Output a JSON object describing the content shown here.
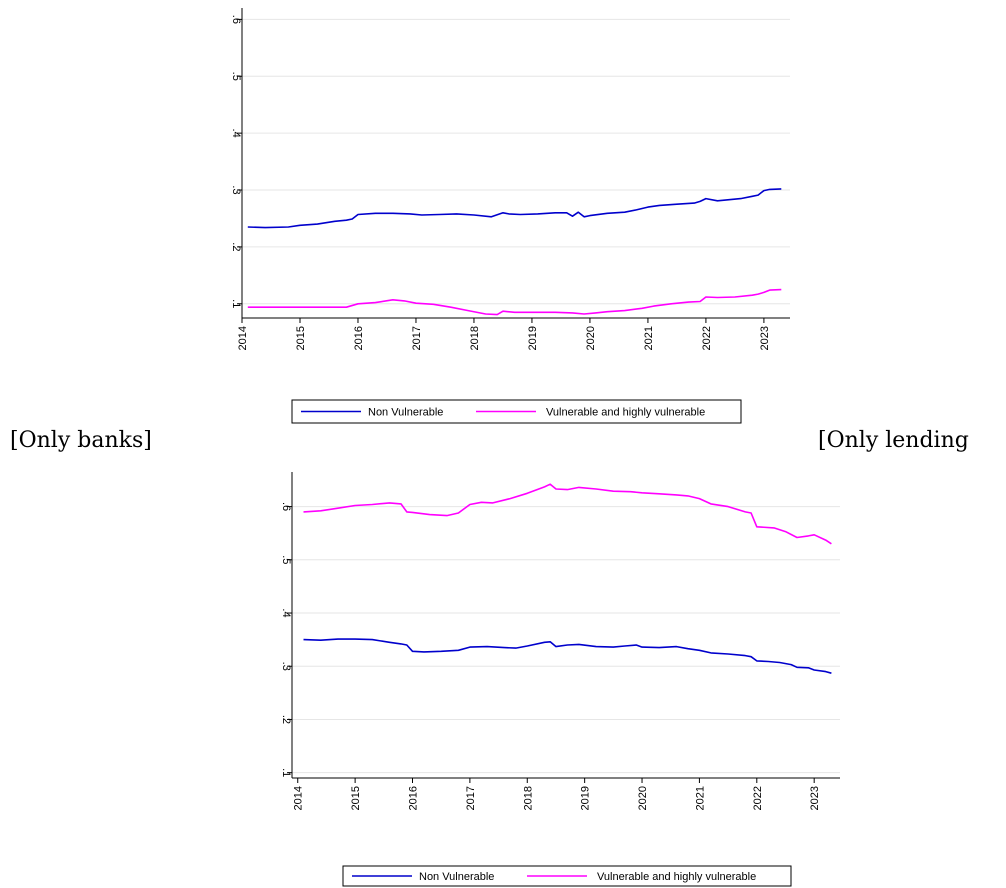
{
  "captions": {
    "left": "[Only banks]",
    "right": "[Only lending"
  },
  "colors": {
    "non_vulnerable": "#0000cc",
    "vulnerable": "#ff00ff",
    "grid": "#e6e6e6",
    "axis": "#000000"
  },
  "chart_data": [
    {
      "type": "line",
      "title": "",
      "xlabel": "",
      "ylabel": "",
      "xlim": [
        2014.0,
        2023.45
      ],
      "ylim": [
        0.075,
        0.62
      ],
      "x_ticks": [
        "2014",
        "2015",
        "2016",
        "2017",
        "2018",
        "2019",
        "2020",
        "2021",
        "2022",
        "2023"
      ],
      "y_ticks": [
        ".1",
        ".2",
        ".3",
        ".4",
        ".5",
        ".6"
      ],
      "grid": true,
      "legend_position": "bottom",
      "series": [
        {
          "name": "Non Vulnerable",
          "color": "#0000cc",
          "x": [
            2014.1,
            2014.4,
            2014.8,
            2015.0,
            2015.3,
            2015.6,
            2015.8,
            2015.9,
            2016.0,
            2016.3,
            2016.6,
            2016.9,
            2017.1,
            2017.4,
            2017.7,
            2018.0,
            2018.3,
            2018.5,
            2018.6,
            2018.8,
            2019.1,
            2019.4,
            2019.6,
            2019.7,
            2019.8,
            2019.9,
            2020.0,
            2020.3,
            2020.6,
            2020.8,
            2021.0,
            2021.2,
            2021.5,
            2021.8,
            2021.9,
            2022.0,
            2022.2,
            2022.4,
            2022.6,
            2022.8,
            2022.9,
            2023.0,
            2023.1,
            2023.3
          ],
          "y": [
            0.235,
            0.234,
            0.235,
            0.238,
            0.24,
            0.245,
            0.247,
            0.249,
            0.257,
            0.259,
            0.259,
            0.258,
            0.256,
            0.257,
            0.258,
            0.256,
            0.253,
            0.26,
            0.258,
            0.257,
            0.258,
            0.26,
            0.26,
            0.254,
            0.261,
            0.253,
            0.255,
            0.259,
            0.261,
            0.265,
            0.27,
            0.273,
            0.275,
            0.277,
            0.28,
            0.285,
            0.281,
            0.283,
            0.285,
            0.289,
            0.291,
            0.299,
            0.301,
            0.302
          ]
        },
        {
          "name": "Vulnerable and highly vulnerable",
          "color": "#ff00ff",
          "x": [
            2014.1,
            2014.5,
            2014.9,
            2015.2,
            2015.5,
            2015.8,
            2016.0,
            2016.3,
            2016.6,
            2016.8,
            2017.0,
            2017.3,
            2017.6,
            2017.9,
            2018.2,
            2018.4,
            2018.5,
            2018.7,
            2019.0,
            2019.4,
            2019.7,
            2019.9,
            2020.1,
            2020.3,
            2020.6,
            2020.9,
            2021.1,
            2021.4,
            2021.7,
            2021.9,
            2022.0,
            2022.2,
            2022.5,
            2022.8,
            2022.9,
            2023.0,
            2023.1,
            2023.3
          ],
          "y": [
            0.094,
            0.094,
            0.094,
            0.094,
            0.094,
            0.094,
            0.1,
            0.102,
            0.107,
            0.105,
            0.101,
            0.099,
            0.094,
            0.088,
            0.082,
            0.081,
            0.087,
            0.085,
            0.085,
            0.085,
            0.084,
            0.082,
            0.084,
            0.086,
            0.088,
            0.092,
            0.096,
            0.1,
            0.103,
            0.104,
            0.112,
            0.111,
            0.112,
            0.115,
            0.117,
            0.12,
            0.124,
            0.125
          ]
        }
      ],
      "legend": [
        "Non Vulnerable",
        "Vulnerable and highly vulnerable"
      ]
    },
    {
      "type": "line",
      "title": "",
      "xlabel": "",
      "ylabel": "",
      "xlim": [
        2013.9,
        2023.45
      ],
      "ylim": [
        0.09,
        0.665
      ],
      "x_ticks": [
        "2014",
        "2015",
        "2016",
        "2017",
        "2018",
        "2019",
        "2020",
        "2021",
        "2022",
        "2023"
      ],
      "y_ticks": [
        ".1",
        ".2",
        ".3",
        ".4",
        ".5",
        ".6"
      ],
      "grid": true,
      "legend_position": "bottom",
      "series": [
        {
          "name": "Non Vulnerable",
          "color": "#0000cc",
          "x": [
            2014.1,
            2014.4,
            2014.7,
            2015.0,
            2015.3,
            2015.6,
            2015.8,
            2015.9,
            2016.0,
            2016.2,
            2016.5,
            2016.8,
            2017.0,
            2017.3,
            2017.6,
            2017.8,
            2018.0,
            2018.3,
            2018.4,
            2018.5,
            2018.7,
            2018.9,
            2019.2,
            2019.5,
            2019.7,
            2019.9,
            2020.0,
            2020.3,
            2020.6,
            2020.8,
            2021.0,
            2021.2,
            2021.5,
            2021.8,
            2021.9,
            2022.0,
            2022.2,
            2022.4,
            2022.6,
            2022.7,
            2022.9,
            2023.0,
            2023.2,
            2023.3
          ],
          "y": [
            0.35,
            0.349,
            0.351,
            0.351,
            0.35,
            0.345,
            0.342,
            0.34,
            0.328,
            0.327,
            0.328,
            0.33,
            0.336,
            0.337,
            0.335,
            0.334,
            0.338,
            0.345,
            0.346,
            0.337,
            0.34,
            0.341,
            0.337,
            0.336,
            0.338,
            0.34,
            0.336,
            0.335,
            0.337,
            0.333,
            0.33,
            0.325,
            0.323,
            0.32,
            0.318,
            0.31,
            0.309,
            0.307,
            0.303,
            0.298,
            0.297,
            0.293,
            0.29,
            0.287
          ]
        },
        {
          "name": "Vulnerable and highly vulnerable",
          "color": "#ff00ff",
          "x": [
            2014.1,
            2014.4,
            2014.7,
            2015.0,
            2015.3,
            2015.6,
            2015.8,
            2015.9,
            2016.0,
            2016.3,
            2016.6,
            2016.8,
            2017.0,
            2017.2,
            2017.4,
            2017.7,
            2018.0,
            2018.3,
            2018.4,
            2018.5,
            2018.7,
            2018.9,
            2019.2,
            2019.5,
            2019.8,
            2020.0,
            2020.3,
            2020.6,
            2020.8,
            2021.0,
            2021.2,
            2021.5,
            2021.8,
            2021.9,
            2022.0,
            2022.3,
            2022.5,
            2022.7,
            2022.9,
            2023.0,
            2023.2,
            2023.3
          ],
          "y": [
            0.59,
            0.592,
            0.597,
            0.602,
            0.604,
            0.607,
            0.605,
            0.59,
            0.589,
            0.585,
            0.583,
            0.588,
            0.604,
            0.608,
            0.607,
            0.615,
            0.625,
            0.637,
            0.642,
            0.633,
            0.632,
            0.636,
            0.633,
            0.629,
            0.628,
            0.626,
            0.624,
            0.622,
            0.62,
            0.615,
            0.605,
            0.6,
            0.59,
            0.588,
            0.562,
            0.56,
            0.553,
            0.542,
            0.545,
            0.547,
            0.537,
            0.53
          ]
        }
      ],
      "legend": [
        "Non Vulnerable",
        "Vulnerable and highly vulnerable"
      ]
    }
  ]
}
